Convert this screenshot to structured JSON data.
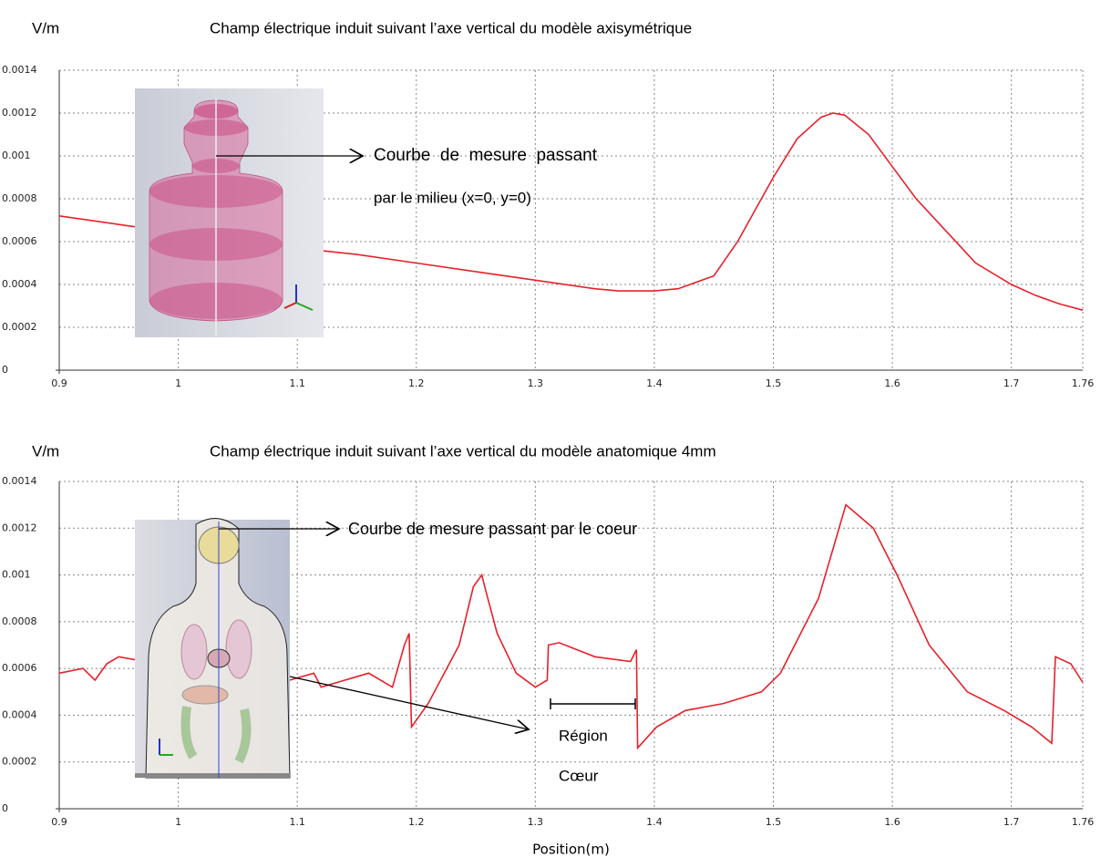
{
  "chart_data": [
    {
      "type": "line",
      "title": "Champ électrique induit suivant l’axe vertical du modèle axisymétrique",
      "ylabel": "V/m",
      "x": [
        0.9,
        0.95,
        1.0,
        1.05,
        1.1,
        1.15,
        1.2,
        1.25,
        1.3,
        1.35,
        1.37,
        1.4,
        1.42,
        1.45,
        1.47,
        1.49,
        1.5,
        1.52,
        1.54,
        1.55,
        1.56,
        1.58,
        1.6,
        1.62,
        1.65,
        1.67,
        1.7,
        1.72,
        1.74,
        1.76
      ],
      "series": [
        {
          "color": "#e8202a",
          "values": [
            0.00072,
            0.00068,
            0.00064,
            0.0006,
            0.00057,
            0.00054,
            0.0005,
            0.00046,
            0.00042,
            0.00038,
            0.00037,
            0.00037,
            0.00038,
            0.00044,
            0.0006,
            0.0008,
            0.0009,
            0.00108,
            0.00118,
            0.0012,
            0.00119,
            0.0011,
            0.00095,
            0.0008,
            0.00062,
            0.0005,
            0.0004,
            0.00035,
            0.00031,
            0.00028
          ]
        }
      ],
      "xlim": [
        0.9,
        1.76
      ],
      "xticks": [
        0.9,
        1,
        1.1,
        1.2,
        1.3,
        1.4,
        1.5,
        1.6,
        1.7,
        1.76
      ],
      "ylim": [
        0,
        0.0014
      ],
      "yticks": [
        0,
        0.0002,
        0.0004,
        0.0006,
        0.0008,
        0.001,
        0.0012,
        0.0014
      ],
      "grid": true,
      "annotations": [
        "Courbe  de  mesure  passant",
        "par le milieu (x=0, y=0)"
      ]
    },
    {
      "type": "line",
      "title": "Champ électrique induit suivant l’axe vertical du modèle anatomique 4mm",
      "ylabel": "V/m",
      "xlabel": "Position(m)",
      "x": [
        0.9,
        0.92,
        0.93,
        0.94,
        0.95,
        1.08,
        1.114,
        1.12,
        1.16,
        1.18,
        1.19,
        1.194,
        1.196,
        1.21,
        1.236,
        1.248,
        1.255,
        1.259,
        1.268,
        1.284,
        1.3,
        1.31,
        1.311,
        1.32,
        1.35,
        1.38,
        1.385,
        1.386,
        1.402,
        1.426,
        1.458,
        1.49,
        1.506,
        1.538,
        1.561,
        1.584,
        1.604,
        1.631,
        1.663,
        1.694,
        1.717,
        1.734,
        1.737,
        1.75,
        1.76
      ],
      "series": [
        {
          "color": "#e8202a",
          "values": [
            0.00058,
            0.0006,
            0.00055,
            0.00062,
            0.00065,
            0.00053,
            0.00058,
            0.00052,
            0.00058,
            0.00052,
            0.0007,
            0.00075,
            0.00035,
            0.00045,
            0.0007,
            0.00095,
            0.001,
            0.00092,
            0.00075,
            0.00058,
            0.00052,
            0.00055,
            0.0007,
            0.00071,
            0.00065,
            0.00063,
            0.00068,
            0.00026,
            0.00035,
            0.00042,
            0.00045,
            0.0005,
            0.00058,
            0.0009,
            0.0013,
            0.0012,
            0.001,
            0.0007,
            0.0005,
            0.00042,
            0.00035,
            0.00028,
            0.00065,
            0.00062,
            0.00054
          ]
        }
      ],
      "xlim": [
        0.9,
        1.76
      ],
      "xticks": [
        0.9,
        1,
        1.1,
        1.2,
        1.3,
        1.4,
        1.5,
        1.6,
        1.7,
        1.76
      ],
      "ylim": [
        0,
        0.0014
      ],
      "yticks": [
        0,
        0.0002,
        0.0004,
        0.0006,
        0.0008,
        0.001,
        0.0012,
        0.0014
      ],
      "grid": true,
      "annotations": [
        "Courbe de mesure passant par le coeur",
        "Région",
        "Cœur"
      ]
    }
  ]
}
